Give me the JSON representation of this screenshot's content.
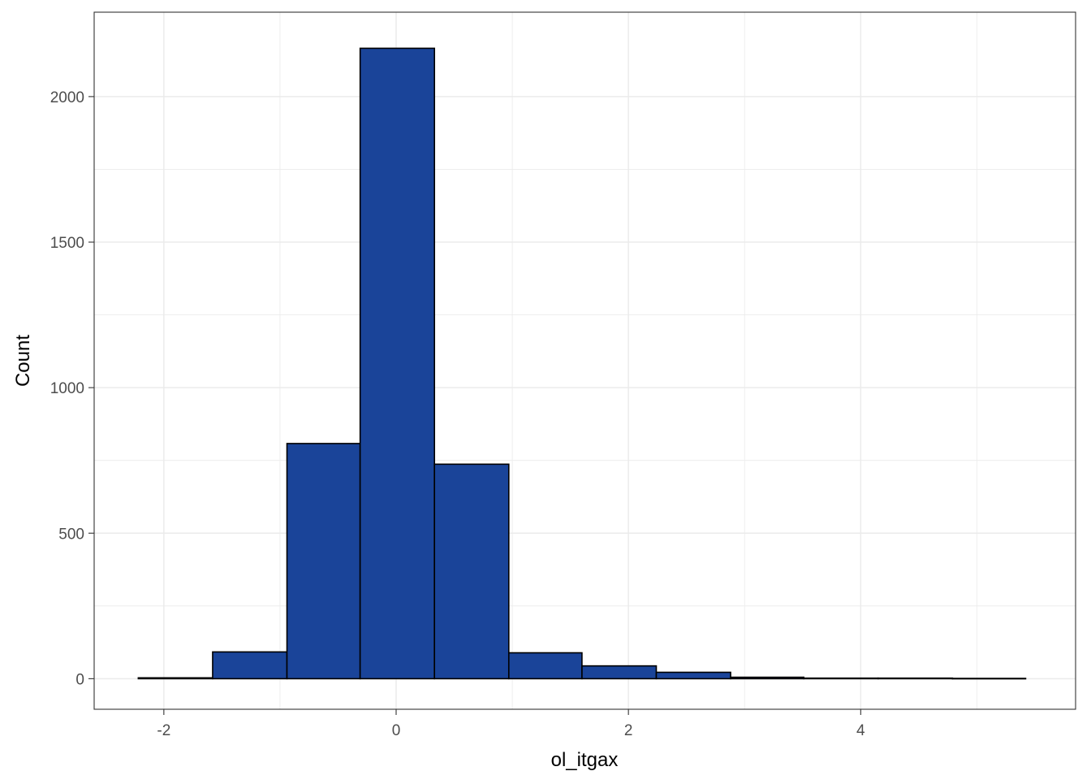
{
  "chart_data": {
    "type": "bar",
    "subtype": "histogram",
    "xlabel": "ol_itgax",
    "ylabel": "Count",
    "xlim": [
      -2.6,
      5.85
    ],
    "ylim": [
      -105,
      2290
    ],
    "x_ticks": [
      {
        "value": -2,
        "label": "-2"
      },
      {
        "value": 0,
        "label": "0"
      },
      {
        "value": 2,
        "label": "2"
      },
      {
        "value": 4,
        "label": "4"
      }
    ],
    "y_ticks": [
      {
        "value": 0,
        "label": "0"
      },
      {
        "value": 500,
        "label": "500"
      },
      {
        "value": 1000,
        "label": "1000"
      },
      {
        "value": 1500,
        "label": "1500"
      },
      {
        "value": 2000,
        "label": "2000"
      }
    ],
    "x_minor_grid": [
      -1,
      1,
      3,
      5
    ],
    "y_minor_grid": [
      250,
      750,
      1250,
      1750
    ],
    "bins": [
      {
        "x0": -2.22,
        "x1": -1.58,
        "count": 3
      },
      {
        "x0": -1.58,
        "x1": -0.94,
        "count": 92
      },
      {
        "x0": -0.94,
        "x1": -0.31,
        "count": 808
      },
      {
        "x0": -0.31,
        "x1": 0.33,
        "count": 2166
      },
      {
        "x0": 0.33,
        "x1": 0.97,
        "count": 737
      },
      {
        "x0": 0.97,
        "x1": 1.6,
        "count": 89
      },
      {
        "x0": 1.6,
        "x1": 2.24,
        "count": 44
      },
      {
        "x0": 2.24,
        "x1": 2.88,
        "count": 22
      },
      {
        "x0": 2.88,
        "x1": 3.51,
        "count": 5
      },
      {
        "x0": 3.51,
        "x1": 4.15,
        "count": 2
      },
      {
        "x0": 4.15,
        "x1": 4.79,
        "count": 2
      },
      {
        "x0": 4.79,
        "x1": 5.42,
        "count": 1
      }
    ],
    "fill_color": "#1A4499",
    "outline_color": "#000000",
    "grid": true,
    "grid_color": "#EBEBEB",
    "panel_border_color": "#333333",
    "tick_label_color": "#4D4D4D",
    "axis_title_color": "#000000",
    "legend": "none"
  }
}
